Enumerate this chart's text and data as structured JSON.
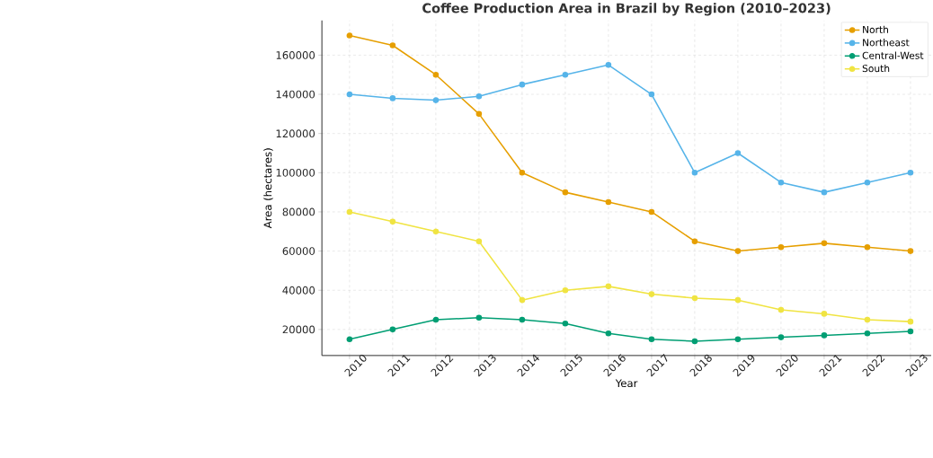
{
  "chart_data": {
    "type": "line",
    "title": "Coffee Production Area in Brazil by Region (2010–2023)",
    "xlabel": "Year",
    "ylabel": "Area (hectares)",
    "categories": [
      "2010",
      "2011",
      "2012",
      "2013",
      "2014",
      "2015",
      "2016",
      "2017",
      "2018",
      "2019",
      "2020",
      "2021",
      "2022",
      "2023"
    ],
    "series": [
      {
        "name": "North",
        "color": "#e69f00",
        "values": [
          170000,
          165000,
          150000,
          130000,
          100000,
          90000,
          85000,
          80000,
          65000,
          60000,
          62000,
          64000,
          62000,
          60000
        ]
      },
      {
        "name": "Northeast",
        "color": "#56b4e9",
        "values": [
          140000,
          138000,
          137000,
          139000,
          145000,
          150000,
          155000,
          140000,
          100000,
          110000,
          95000,
          90000,
          95000,
          100000
        ]
      },
      {
        "name": "Central-West",
        "color": "#009e73",
        "values": [
          15000,
          20000,
          25000,
          26000,
          25000,
          23000,
          18000,
          15000,
          14000,
          15000,
          16000,
          17000,
          18000,
          19000
        ]
      },
      {
        "name": "South",
        "color": "#f0e442",
        "values": [
          80000,
          75000,
          70000,
          65000,
          35000,
          40000,
          42000,
          38000,
          36000,
          35000,
          30000,
          28000,
          25000,
          24000
        ]
      }
    ],
    "ylim": [
      6700,
      177700
    ],
    "yticks": [
      20000,
      40000,
      60000,
      80000,
      100000,
      120000,
      140000,
      160000
    ],
    "grid": true,
    "legend": "top right",
    "marker": "circle",
    "line_style": "solid"
  }
}
